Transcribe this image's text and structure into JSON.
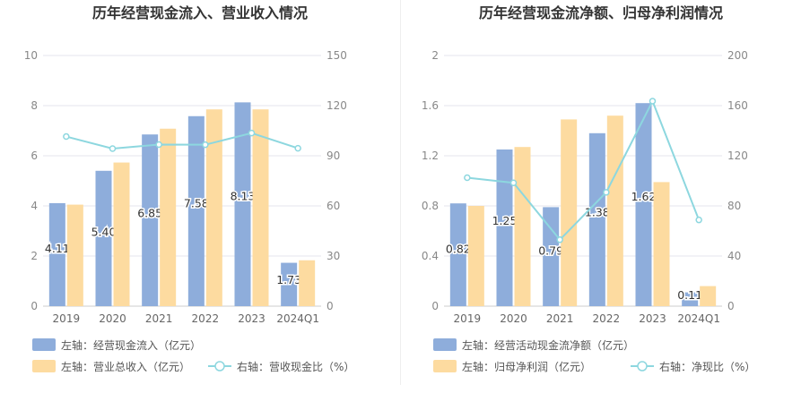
{
  "chart_data": [
    {
      "type": "bar",
      "title": "历年经营现金流入、营业收入情况",
      "categories": [
        "2019",
        "2020",
        "2021",
        "2022",
        "2023",
        "2024Q1"
      ],
      "y_left": {
        "ticks": [
          "0",
          "2",
          "4",
          "6",
          "8",
          "10"
        ],
        "ylim": [
          0,
          10
        ]
      },
      "y_right": {
        "ticks": [
          "0",
          "30",
          "60",
          "90",
          "120",
          "150"
        ],
        "ylim": [
          0,
          150
        ]
      },
      "grid": true,
      "legend_position": "bottom",
      "series": [
        {
          "name": "左轴：经营现金流入（亿元）",
          "kind": "bar",
          "axis": "left",
          "color": "#8eaddb",
          "values": [
            4.11,
            5.4,
            6.85,
            7.58,
            8.13,
            1.73
          ],
          "labels": [
            "4.11",
            "5.40",
            "6.85",
            "7.58",
            "8.13",
            "1.73"
          ]
        },
        {
          "name": "左轴：营业总收入（亿元）",
          "kind": "bar",
          "axis": "left",
          "color": "#fddba0",
          "values": [
            4.05,
            5.73,
            7.08,
            7.85,
            7.85,
            1.83
          ]
        },
        {
          "name": "右轴：营收现金比（%）",
          "kind": "line",
          "axis": "right",
          "color": "#8dd7df",
          "values": [
            101.5,
            94.3,
            96.7,
            96.6,
            103.6,
            94.5
          ]
        }
      ]
    },
    {
      "type": "bar",
      "title": "历年经营现金流净额、归母净利润情况",
      "categories": [
        "2019",
        "2020",
        "2021",
        "2022",
        "2023",
        "2024Q1"
      ],
      "y_left": {
        "ticks": [
          "0",
          "0.4",
          "0.8",
          "1.2",
          "1.6",
          "2"
        ],
        "ylim": [
          0,
          2
        ]
      },
      "y_right": {
        "ticks": [
          "0",
          "40",
          "80",
          "120",
          "160",
          "200"
        ],
        "ylim": [
          0,
          200
        ]
      },
      "grid": true,
      "legend_position": "bottom",
      "series": [
        {
          "name": "左轴：经营活动现金流净额（亿元）",
          "kind": "bar",
          "axis": "left",
          "color": "#8eaddb",
          "values": [
            0.82,
            1.25,
            0.79,
            1.38,
            1.62,
            0.11
          ],
          "labels": [
            "0.82",
            "1.25",
            "0.79",
            "1.38",
            "1.62",
            "0.11"
          ]
        },
        {
          "name": "左轴：归母净利润（亿元）",
          "kind": "bar",
          "axis": "left",
          "color": "#fddba0",
          "values": [
            0.8,
            1.27,
            1.49,
            1.52,
            0.99,
            0.16
          ]
        },
        {
          "name": "右轴：净现比（%）",
          "kind": "line",
          "axis": "right",
          "color": "#8dd7df",
          "values": [
            102.5,
            98.4,
            53.0,
            90.8,
            163.6,
            68.8
          ]
        }
      ]
    }
  ]
}
